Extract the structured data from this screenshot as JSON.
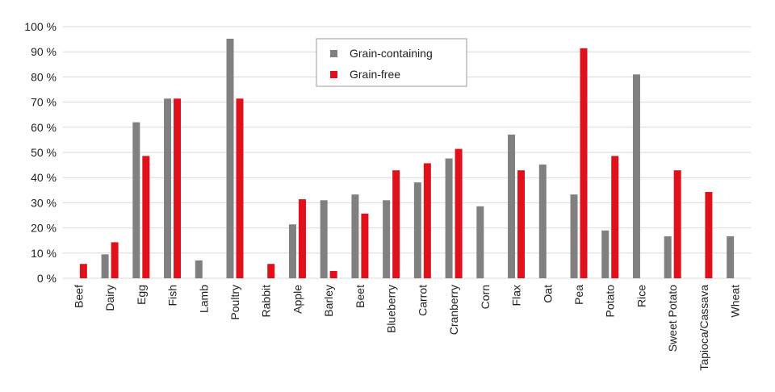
{
  "chart_data": {
    "type": "bar",
    "categories": [
      "Beef",
      "Dairy",
      "Egg",
      "Fish",
      "Lamb",
      "Poultry",
      "Rabbit",
      "Apple",
      "Barley",
      "Beet",
      "Blueberry",
      "Carrot",
      "Cranberry",
      "Corn",
      "Flax",
      "Oat",
      "Pea",
      "Potato",
      "Rice",
      "Sweet Potato",
      "Tapioca/Cassava",
      "Wheat"
    ],
    "series": [
      {
        "name": "Grain-containing",
        "color": "#808080",
        "values": [
          0,
          9.5,
          62,
          71.4,
          7.1,
          95.2,
          0,
          21.4,
          31,
          33.3,
          31,
          38.1,
          47.6,
          28.6,
          57.1,
          45.2,
          33.3,
          19,
          81,
          16.7,
          0,
          16.7
        ]
      },
      {
        "name": "Grain-free",
        "color": "#e0111b",
        "values": [
          5.7,
          14.3,
          48.6,
          71.4,
          0,
          71.4,
          5.7,
          31.4,
          2.9,
          25.7,
          42.9,
          45.7,
          51.4,
          0,
          42.9,
          0,
          91.4,
          48.6,
          0,
          42.9,
          34.3,
          0
        ]
      }
    ],
    "y_ticks": [
      "0 %",
      "10 %",
      "20 %",
      "30 %",
      "40 %",
      "50 %",
      "60 %",
      "70 %",
      "80 %",
      "90 %",
      "100 %"
    ],
    "ylim": [
      0,
      100
    ],
    "grid": true,
    "legend_position": "top-center",
    "title": "",
    "xlabel": "",
    "ylabel": ""
  }
}
